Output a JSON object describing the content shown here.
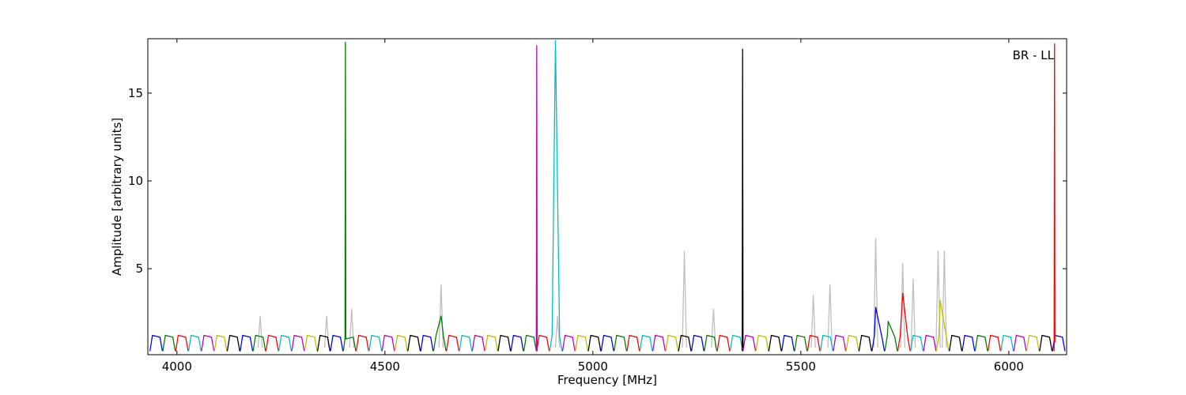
{
  "chart_data": {
    "type": "line",
    "xlabel": "Frequency [MHz]",
    "ylabel": "Amplitude [arbitrary units]",
    "annotation": "BR - LL",
    "xlim": [
      3930,
      6139
    ],
    "ylim": [
      0.1,
      18.1
    ],
    "xticks": [
      4000,
      4500,
      5000,
      5500,
      6000
    ],
    "yticks": [
      5,
      10,
      15
    ],
    "grid": false,
    "series": [
      {
        "color": "#bfbfbf",
        "x": [
          4195,
          4200,
          4205,
          4206,
          4355,
          4360,
          4365,
          4366,
          4415,
          4420,
          4425,
          4426,
          4630,
          4635,
          4640,
          4641,
          4910,
          4915,
          4920,
          4921,
          5215,
          5220,
          5225,
          5226,
          5285,
          5290,
          5295,
          5296,
          5525,
          5530,
          5535,
          5536,
          5565,
          5570,
          5575,
          5576,
          5675,
          5680,
          5685,
          5686,
          5740,
          5745,
          5750,
          5751,
          5765,
          5770,
          5775,
          5776,
          5825,
          5830,
          5835,
          5836,
          5840,
          5845,
          5850
        ],
        "values": [
          0.5,
          2.3,
          0.5,
          null,
          0.5,
          2.3,
          0.5,
          null,
          0.5,
          2.7,
          0.5,
          null,
          0.5,
          4.1,
          0.5,
          null,
          0.5,
          2.3,
          0.5,
          null,
          0.5,
          6.0,
          0.5,
          null,
          0.5,
          2.7,
          0.5,
          null,
          0.5,
          3.5,
          0.5,
          null,
          0.5,
          4.1,
          0.5,
          null,
          0.5,
          6.7,
          0.5,
          null,
          0.5,
          5.3,
          0.5,
          null,
          0.5,
          4.4,
          0.5,
          null,
          0.5,
          6.0,
          0.5,
          null,
          0.5,
          6.0,
          0.5
        ]
      },
      {
        "color": "#0000ff",
        "x": [
          3935,
          3941,
          3959,
          3965,
          3966,
          4152,
          4158,
          4176,
          4182,
          4183,
          4369,
          4375,
          4393,
          4399,
          4400,
          4586,
          4592,
          4610,
          4616,
          4617,
          4803,
          4809,
          4827,
          4833,
          4834,
          5020,
          5026,
          5044,
          5050,
          5051,
          5237,
          5243,
          5261,
          5267,
          5268,
          5454,
          5460,
          5478,
          5484,
          5485,
          5671,
          5677,
          5680,
          5695,
          5701,
          5702,
          5888,
          5894,
          5912,
          5918,
          5919,
          6105,
          6111,
          6129,
          6135
        ],
        "values": [
          0.3,
          1.2,
          1.1,
          0.3,
          null,
          0.3,
          1.2,
          1.1,
          0.3,
          null,
          0.3,
          1.2,
          1.1,
          0.3,
          null,
          0.3,
          1.2,
          1.1,
          0.3,
          null,
          0.3,
          1.2,
          1.1,
          0.3,
          null,
          0.3,
          1.2,
          1.1,
          0.3,
          null,
          0.3,
          1.2,
          1.1,
          0.3,
          null,
          0.3,
          1.2,
          1.1,
          0.3,
          null,
          0.3,
          1.2,
          2.8,
          1.1,
          0.3,
          null,
          0.3,
          1.2,
          1.1,
          0.3,
          null,
          0.3,
          1.2,
          1.1,
          0.3
        ]
      },
      {
        "color": "#008000",
        "x": [
          3966,
          3972,
          3990,
          3996,
          3997,
          4183,
          4189,
          4207,
          4213,
          4214,
          4400,
          4404,
          4405,
          4406,
          4424,
          4430,
          4431,
          4617,
          4623,
          4635,
          4641,
          4647,
          4648,
          4834,
          4840,
          4858,
          4864,
          4865,
          5051,
          5057,
          5075,
          5081,
          5082,
          5268,
          5274,
          5292,
          5298,
          5299,
          5485,
          5491,
          5509,
          5515,
          5516,
          5702,
          5708,
          5710,
          5726,
          5732,
          5733,
          5919,
          5925,
          5943,
          5949
        ],
        "values": [
          0.3,
          1.2,
          1.1,
          0.3,
          null,
          0.3,
          1.2,
          1.1,
          0.3,
          null,
          0.3,
          1.0,
          17.9,
          1.0,
          1.1,
          0.3,
          null,
          0.3,
          1.2,
          2.3,
          1.1,
          0.3,
          null,
          0.3,
          1.2,
          1.1,
          0.3,
          null,
          0.3,
          1.2,
          1.1,
          0.3,
          null,
          0.3,
          1.2,
          1.1,
          0.3,
          null,
          0.3,
          1.2,
          1.1,
          0.3,
          null,
          0.3,
          1.2,
          2.0,
          1.1,
          0.3,
          null,
          0.3,
          1.2,
          1.1,
          0.3
        ]
      },
      {
        "color": "#ff0000",
        "x": [
          3997,
          4003,
          4021,
          4027,
          4028,
          4214,
          4220,
          4238,
          4244,
          4245,
          4431,
          4437,
          4455,
          4461,
          4462,
          4648,
          4654,
          4672,
          4678,
          4679,
          4865,
          4871,
          4889,
          4895,
          4896,
          5082,
          5088,
          5106,
          5112,
          5113,
          5299,
          5305,
          5323,
          5329,
          5330,
          5516,
          5522,
          5540,
          5546,
          5547,
          5733,
          5739,
          5745,
          5757,
          5763,
          5764,
          5950,
          5956,
          5974,
          5980,
          5981,
          6109,
          6110,
          6111
        ],
        "values": [
          0.3,
          1.2,
          1.1,
          0.3,
          null,
          0.3,
          1.2,
          1.1,
          0.3,
          null,
          0.3,
          1.2,
          1.1,
          0.3,
          null,
          0.3,
          1.2,
          1.1,
          0.3,
          null,
          0.3,
          1.2,
          1.1,
          0.3,
          null,
          0.3,
          1.2,
          1.1,
          0.3,
          null,
          0.3,
          1.2,
          1.1,
          0.3,
          null,
          0.3,
          1.2,
          1.1,
          0.3,
          null,
          0.3,
          1.2,
          3.6,
          1.1,
          0.3,
          null,
          0.3,
          1.2,
          1.1,
          0.3,
          null,
          0.3,
          17.8,
          0.8
        ]
      },
      {
        "color": "#00bfbf",
        "x": [
          4028,
          4034,
          4052,
          4058,
          4059,
          4245,
          4251,
          4269,
          4275,
          4276,
          4462,
          4468,
          4486,
          4492,
          4493,
          4679,
          4685,
          4703,
          4709,
          4710,
          4896,
          4902,
          4910,
          4920,
          4926,
          4927,
          5113,
          5119,
          5137,
          5143,
          5144,
          5330,
          5336,
          5354,
          5360,
          5361,
          5547,
          5553,
          5571,
          5577,
          5578,
          5764,
          5770,
          5788,
          5794,
          5795,
          5981,
          5987,
          6005,
          6011
        ],
        "values": [
          0.3,
          1.2,
          1.1,
          0.3,
          null,
          0.3,
          1.2,
          1.1,
          0.3,
          null,
          0.3,
          1.2,
          1.1,
          0.3,
          null,
          0.3,
          1.2,
          1.1,
          0.3,
          null,
          0.3,
          1.2,
          18.0,
          1.1,
          0.3,
          null,
          0.3,
          1.2,
          1.1,
          0.3,
          null,
          0.3,
          1.2,
          1.1,
          0.3,
          null,
          0.3,
          1.2,
          1.1,
          0.3,
          null,
          0.3,
          1.2,
          1.1,
          0.3,
          null,
          0.3,
          1.2,
          1.1,
          0.3
        ]
      },
      {
        "color": "#bf00bf",
        "x": [
          4059,
          4065,
          4083,
          4089,
          4090,
          4276,
          4282,
          4300,
          4306,
          4307,
          4493,
          4499,
          4517,
          4523,
          4524,
          4710,
          4716,
          4734,
          4740,
          4741,
          4864,
          4865,
          4866,
          4867,
          4927,
          4933,
          4951,
          4957,
          4958,
          5144,
          5150,
          5168,
          5174,
          5175,
          5361,
          5367,
          5385,
          5391,
          5392,
          5578,
          5584,
          5602,
          5608,
          5609,
          5795,
          5801,
          5819,
          5825,
          5826,
          6012,
          6018,
          6036,
          6042
        ],
        "values": [
          0.3,
          1.2,
          1.1,
          0.3,
          null,
          0.3,
          1.2,
          1.1,
          0.3,
          null,
          0.3,
          1.2,
          1.1,
          0.3,
          null,
          0.3,
          1.2,
          1.1,
          0.3,
          null,
          0.3,
          17.7,
          0.3,
          null,
          0.3,
          1.2,
          1.1,
          0.3,
          null,
          0.3,
          1.2,
          1.1,
          0.3,
          null,
          0.3,
          1.2,
          1.1,
          0.3,
          null,
          0.3,
          1.2,
          1.1,
          0.3,
          null,
          0.3,
          1.2,
          1.1,
          0.3,
          null,
          0.3,
          1.2,
          1.1,
          0.3
        ]
      },
      {
        "color": "#bfbf00",
        "x": [
          4090,
          4096,
          4114,
          4120,
          4121,
          4307,
          4313,
          4331,
          4337,
          4338,
          4524,
          4530,
          4548,
          4554,
          4555,
          4741,
          4747,
          4765,
          4771,
          4772,
          4958,
          4964,
          4982,
          4988,
          4989,
          5175,
          5181,
          5199,
          5205,
          5206,
          5392,
          5398,
          5416,
          5422,
          5423,
          5609,
          5615,
          5633,
          5639,
          5640,
          5826,
          5832,
          5835,
          5850,
          5856,
          5857,
          6043,
          6049,
          6067,
          6073
        ],
        "values": [
          0.3,
          1.2,
          1.1,
          0.3,
          null,
          0.3,
          1.2,
          1.1,
          0.3,
          null,
          0.3,
          1.2,
          1.1,
          0.3,
          null,
          0.3,
          1.2,
          1.1,
          0.3,
          null,
          0.3,
          1.2,
          1.1,
          0.3,
          null,
          0.3,
          1.2,
          1.1,
          0.3,
          null,
          0.3,
          1.2,
          1.1,
          0.3,
          null,
          0.3,
          1.2,
          1.1,
          0.3,
          null,
          0.3,
          1.2,
          3.2,
          1.1,
          0.3,
          null,
          0.3,
          1.2,
          1.1,
          0.3
        ]
      },
      {
        "color": "#000000",
        "x": [
          4121,
          4127,
          4145,
          4151,
          4152,
          4338,
          4344,
          4362,
          4368,
          4369,
          4555,
          4561,
          4579,
          4585,
          4586,
          4772,
          4778,
          4796,
          4802,
          4803,
          4989,
          4995,
          5013,
          5019,
          5020,
          5206,
          5212,
          5230,
          5236,
          5237,
          5359,
          5360,
          5361,
          5362,
          5423,
          5429,
          5447,
          5453,
          5454,
          5640,
          5646,
          5664,
          5670,
          5671,
          5857,
          5863,
          5881,
          5887,
          5888,
          6074,
          6080,
          6098,
          6104
        ],
        "values": [
          0.3,
          1.2,
          1.1,
          0.3,
          null,
          0.3,
          1.2,
          1.1,
          0.3,
          null,
          0.3,
          1.2,
          1.1,
          0.3,
          null,
          0.3,
          1.2,
          1.1,
          0.3,
          null,
          0.3,
          1.2,
          1.1,
          0.3,
          null,
          0.3,
          1.2,
          1.1,
          0.3,
          null,
          0.3,
          17.5,
          0.5,
          null,
          0.3,
          1.2,
          1.1,
          0.3,
          null,
          0.3,
          1.2,
          1.1,
          0.3,
          null,
          0.3,
          1.2,
          1.1,
          0.3,
          null,
          0.3,
          1.2,
          1.1,
          0.3
        ]
      }
    ]
  }
}
